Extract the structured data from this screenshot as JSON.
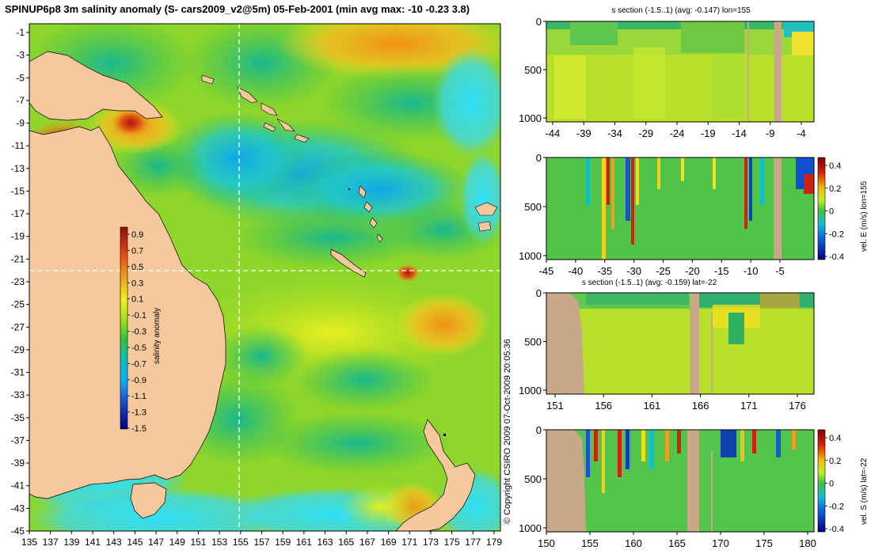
{
  "title": "SPINUP6p8 3m salinity anomaly (S- cars2009_v2@5m) 05-Feb-2001 (min avg max: -10 -0.23 3.8)",
  "copyright": "© Copyright CSIRO 2009   07-Oct-2009 20:05:36",
  "map": {
    "y_ticks": [
      "-1",
      "-3",
      "-5",
      "-7",
      "-9",
      "-11",
      "-13",
      "-15",
      "-17",
      "-19",
      "-21",
      "-23",
      "-25",
      "-27",
      "-29",
      "-31",
      "-33",
      "-35",
      "-37",
      "-39",
      "-41",
      "-43",
      "-45"
    ],
    "x_ticks": [
      "135",
      "137",
      "139",
      "141",
      "143",
      "145",
      "147",
      "149",
      "151",
      "153",
      "155",
      "157",
      "159",
      "161",
      "163",
      "165",
      "167",
      "169",
      "171",
      "173",
      "175",
      "177",
      "179"
    ],
    "section_lon": 155,
    "section_lat": -22
  },
  "colorbar_main": {
    "label": "salinity anomaly",
    "ticks": [
      "0.9",
      "0.7",
      "0.5",
      "0.3",
      "0.1",
      "-0.1",
      "-0.3",
      "-0.5",
      "-0.7",
      "-0.9",
      "-1.1",
      "-1.3",
      "-1.5"
    ]
  },
  "panels": [
    {
      "title": "s section (-1.5..1) (avg: -0.147) lon=155",
      "y_ticks": [
        "0",
        "500",
        "1000"
      ],
      "x_ticks": [
        "-44",
        "-39",
        "-34",
        "-29",
        "-24",
        "-19",
        "-14",
        "-9",
        "-4"
      ],
      "side_label": "",
      "cbar_ticks": []
    },
    {
      "title": "",
      "y_ticks": [
        "0",
        "500",
        "1000"
      ],
      "x_ticks": [
        "-45",
        "-40",
        "-35",
        "-30",
        "-25",
        "-20",
        "-15",
        "-10",
        "-5"
      ],
      "side_label": "vel. E (m/s) lon=155",
      "cbar_ticks": [
        "0.4",
        "0.2",
        "0",
        "-0.2",
        "-0.4"
      ]
    },
    {
      "title": "s section (-1.5..1) (avg: -0.159) lat=-22",
      "y_ticks": [
        "0",
        "500",
        "1000"
      ],
      "x_ticks": [
        "151",
        "156",
        "161",
        "166",
        "171",
        "176"
      ],
      "side_label": "",
      "cbar_ticks": []
    },
    {
      "title": "",
      "y_ticks": [
        "0",
        "500",
        "1000"
      ],
      "x_ticks": [
        "150",
        "155",
        "160",
        "165",
        "170",
        "175",
        "180"
      ],
      "side_label": "vel. S (m/s) lat=-22",
      "cbar_ticks": [
        "0.4",
        "0.2",
        "0",
        "-0.2",
        "-0.4"
      ]
    }
  ],
  "colors": {
    "land": "#f7c89b",
    "section_land": "#c8a888",
    "ocean_base": "#8fd62a",
    "ocean_cool": "#20b0b0",
    "ocean_cyan": "#10d8f0",
    "ocean_warm": "#f0a020"
  }
}
